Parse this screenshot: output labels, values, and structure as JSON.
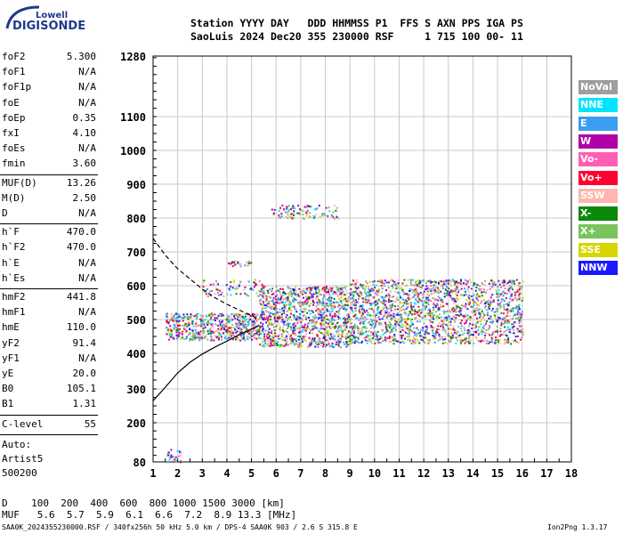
{
  "logo": {
    "line1": "Lowell",
    "line2": "DIGISONDE"
  },
  "header": {
    "line1": "Station YYYY DAY   DDD HHMMSS P1  FFS S AXN PPS IGA PS",
    "line2": "SaoLuis 2024 Dec20 355 230000 RSF     1 715 100 00- 11"
  },
  "params_group1": [
    {
      "name": "foF2",
      "value": "5.300"
    },
    {
      "name": "foF1",
      "value": "N/A"
    },
    {
      "name": "foF1p",
      "value": "N/A"
    },
    {
      "name": "foE",
      "value": "N/A"
    },
    {
      "name": "foEp",
      "value": "0.35"
    },
    {
      "name": "fxI",
      "value": "4.10"
    },
    {
      "name": "foEs",
      "value": "N/A"
    },
    {
      "name": "fmin",
      "value": "3.60"
    }
  ],
  "params_group2": [
    {
      "name": "MUF(D)",
      "value": "13.26"
    },
    {
      "name": "M(D)",
      "value": "2.50"
    },
    {
      "name": "D",
      "value": "N/A"
    }
  ],
  "params_group3": [
    {
      "name": "h`F",
      "value": "470.0"
    },
    {
      "name": "h`F2",
      "value": "470.0"
    },
    {
      "name": "h`E",
      "value": "N/A"
    },
    {
      "name": "h`Es",
      "value": "N/A"
    }
  ],
  "params_group4": [
    {
      "name": "hmF2",
      "value": "441.8"
    },
    {
      "name": "hmF1",
      "value": "N/A"
    },
    {
      "name": "hmE",
      "value": "110.0"
    },
    {
      "name": "yF2",
      "value": "91.4"
    },
    {
      "name": "yF1",
      "value": "N/A"
    },
    {
      "name": "yE",
      "value": "20.0"
    },
    {
      "name": "B0",
      "value": "105.1"
    },
    {
      "name": "B1",
      "value": "1.31"
    }
  ],
  "clevel": {
    "name": "C-level",
    "value": "55"
  },
  "auto": {
    "line1": "Auto:",
    "line2": "Artist5",
    "line3": "500200"
  },
  "legend": [
    {
      "label": "NoVal",
      "color": "#9e9e9e"
    },
    {
      "label": "NNE",
      "color": "#00e5ff"
    },
    {
      "label": "E",
      "color": "#3b9cf0"
    },
    {
      "label": "W",
      "color": "#b000a8"
    },
    {
      "label": "Vo-",
      "color": "#ff5fb3"
    },
    {
      "label": "Vo+",
      "color": "#ff0033"
    },
    {
      "label": "SSW",
      "color": "#ffb6b0"
    },
    {
      "label": "X-",
      "color": "#0a8a0a"
    },
    {
      "label": "X+",
      "color": "#7ac45c"
    },
    {
      "label": "SSE",
      "color": "#d6d600"
    },
    {
      "label": "NNW",
      "color": "#1a1aff"
    }
  ],
  "footer": {
    "d_line": "D    100  200  400  600  800 1000 1500 3000 [km]",
    "muf_line": "MUF   5.6  5.7  5.9  6.1  6.6  7.2  8.9 13.3 [MHz]",
    "file_line": "SAA0K_2024355230000.RSF / 340fx256h 50 kHz 5.0 km / DPS-4 SAA0K 903 / 2.6 S 315.8 E",
    "version": "Ion2Png 1.3.17"
  },
  "chart_data": {
    "type": "scatter",
    "x_ticks": [
      "1",
      "2",
      "3",
      "4",
      "5",
      "6",
      "7",
      "8",
      "9",
      "10",
      "11",
      "12",
      "13",
      "14",
      "15",
      "16",
      "17",
      "18"
    ],
    "y_ticks": [
      "80",
      "200",
      "300",
      "400",
      "500",
      "600",
      "700",
      "800",
      "900",
      "1000",
      "1100",
      "1280"
    ],
    "xlim": [
      1,
      18
    ],
    "ylim": [
      80,
      1280
    ],
    "series": [],
    "traces": {
      "o_trace_dashed": {
        "x": [
          1.0,
          1.5,
          2.0,
          2.5,
          3.0,
          3.5,
          4.0,
          4.5,
          5.0,
          5.3
        ],
        "y": [
          740,
          690,
          650,
          620,
          590,
          565,
          545,
          528,
          512,
          500
        ]
      },
      "true_height_solid": {
        "x": [
          1.0,
          1.5,
          2.0,
          2.5,
          3.0,
          3.5,
          4.0,
          4.5,
          5.0,
          5.3
        ],
        "y": [
          265,
          305,
          345,
          375,
          398,
          418,
          436,
          455,
          472,
          482
        ]
      }
    },
    "echo_clusters": [
      {
        "x": [
          1.5,
          5.3
        ],
        "y": [
          440,
          520
        ],
        "density": 1.0
      },
      {
        "x": [
          5.3,
          9.0
        ],
        "y": [
          420,
          600
        ],
        "density": 0.9
      },
      {
        "x": [
          9.0,
          16.0
        ],
        "y": [
          430,
          620
        ],
        "density": 0.7
      },
      {
        "x": [
          4.0,
          5.0
        ],
        "y": [
          660,
          675
        ],
        "density": 0.8
      },
      {
        "x": [
          5.8,
          8.5
        ],
        "y": [
          800,
          840
        ],
        "density": 0.5
      },
      {
        "x": [
          1.5,
          2.1
        ],
        "y": [
          80,
          120
        ],
        "density": 0.6
      },
      {
        "x": [
          3.0,
          5.5
        ],
        "y": [
          570,
          620
        ],
        "density": 0.3
      }
    ]
  }
}
